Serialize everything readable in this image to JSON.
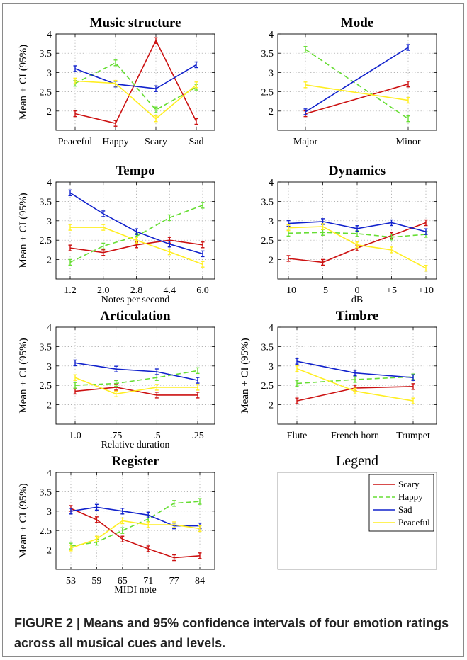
{
  "figure": {
    "caption_lead": "FIGURE 2 | Means and 95% confidence intervals of four emotion ratings across all musical cues and levels."
  },
  "legend": {
    "title": "Legend",
    "entries": [
      {
        "name": "Scary",
        "color": "#cc1111",
        "dashed": false
      },
      {
        "name": "Happy",
        "color": "#66dd33",
        "dashed": true
      },
      {
        "name": "Sad",
        "color": "#1122cc",
        "dashed": false
      },
      {
        "name": "Peaceful",
        "color": "#ffee22",
        "dashed": false
      }
    ]
  },
  "chart_data": [
    {
      "type": "line",
      "title": "Music structure",
      "ylabel": "Mean + CI (95%)",
      "xlabel": "",
      "categories": [
        "Peaceful",
        "Happy",
        "Scary",
        "Sad"
      ],
      "ylim": [
        1.5,
        4
      ],
      "yticks": [
        2,
        2.5,
        3,
        3.5,
        4
      ],
      "grid": true,
      "series": [
        {
          "name": "Scary",
          "values": [
            1.93,
            1.68,
            3.83,
            1.73
          ]
        },
        {
          "name": "Happy",
          "values": [
            2.72,
            3.25,
            2.03,
            2.62
          ]
        },
        {
          "name": "Sad",
          "values": [
            3.1,
            2.7,
            2.58,
            3.2
          ]
        },
        {
          "name": "Peaceful",
          "values": [
            2.78,
            2.72,
            1.8,
            2.68
          ]
        }
      ]
    },
    {
      "type": "line",
      "title": "Mode",
      "ylabel": "",
      "xlabel": "",
      "categories": [
        "Major",
        "Minor"
      ],
      "ylim": [
        1.5,
        4
      ],
      "yticks": [
        2,
        2.5,
        3,
        3.5,
        4
      ],
      "grid": true,
      "series": [
        {
          "name": "Scary",
          "values": [
            1.93,
            2.7
          ]
        },
        {
          "name": "Happy",
          "values": [
            3.6,
            1.8
          ]
        },
        {
          "name": "Sad",
          "values": [
            1.98,
            3.65
          ]
        },
        {
          "name": "Peaceful",
          "values": [
            2.68,
            2.28
          ]
        }
      ]
    },
    {
      "type": "line",
      "title": "Tempo",
      "ylabel": "Mean + CI (95%)",
      "xlabel": "Notes per second",
      "categories": [
        "1.2",
        "2.0",
        "2.8",
        "4.4",
        "6.0"
      ],
      "ylim": [
        1.5,
        4
      ],
      "yticks": [
        2,
        2.5,
        3,
        3.5,
        4
      ],
      "grid": true,
      "series": [
        {
          "name": "Scary",
          "values": [
            2.3,
            2.18,
            2.38,
            2.5,
            2.38
          ]
        },
        {
          "name": "Happy",
          "values": [
            1.93,
            2.35,
            2.6,
            3.08,
            3.4
          ]
        },
        {
          "name": "Sad",
          "values": [
            3.72,
            3.18,
            2.72,
            2.4,
            2.15
          ]
        },
        {
          "name": "Peaceful",
          "values": [
            2.83,
            2.83,
            2.5,
            2.2,
            1.88
          ]
        }
      ]
    },
    {
      "type": "line",
      "title": "Dynamics",
      "ylabel": "",
      "xlabel": "dB",
      "categories": [
        "−10",
        "−5",
        "0",
        "+5",
        "+10"
      ],
      "ylim": [
        1.5,
        4
      ],
      "yticks": [
        2,
        2.5,
        3,
        3.5,
        4
      ],
      "grid": true,
      "series": [
        {
          "name": "Scary",
          "values": [
            2.03,
            1.93,
            2.3,
            2.62,
            2.95
          ]
        },
        {
          "name": "Happy",
          "values": [
            2.68,
            2.7,
            2.67,
            2.58,
            2.65
          ]
        },
        {
          "name": "Sad",
          "values": [
            2.93,
            2.98,
            2.8,
            2.95,
            2.72
          ]
        },
        {
          "name": "Peaceful",
          "values": [
            2.82,
            2.85,
            2.38,
            2.25,
            1.78
          ]
        }
      ]
    },
    {
      "type": "line",
      "title": "Articulation",
      "ylabel": "Mean + CI (95%)",
      "xlabel": "Relative duration",
      "categories": [
        "1.0",
        ".75",
        ".5",
        ".25"
      ],
      "ylim": [
        1.5,
        4
      ],
      "yticks": [
        2,
        2.5,
        3,
        3.5,
        4
      ],
      "grid": true,
      "series": [
        {
          "name": "Scary",
          "values": [
            2.35,
            2.45,
            2.25,
            2.25
          ]
        },
        {
          "name": "Happy",
          "values": [
            2.5,
            2.55,
            2.7,
            2.88
          ]
        },
        {
          "name": "Sad",
          "values": [
            3.08,
            2.92,
            2.85,
            2.63
          ]
        },
        {
          "name": "Peaceful",
          "values": [
            2.7,
            2.28,
            2.45,
            2.45
          ]
        }
      ]
    },
    {
      "type": "line",
      "title": "Timbre",
      "ylabel": "Mean + CI (95%)",
      "xlabel": "",
      "categories": [
        "Flute",
        "French horn",
        "Trumpet"
      ],
      "ylim": [
        1.5,
        4
      ],
      "yticks": [
        2,
        2.5,
        3,
        3.5,
        4
      ],
      "grid": true,
      "series": [
        {
          "name": "Scary",
          "values": [
            2.1,
            2.43,
            2.47
          ]
        },
        {
          "name": "Happy",
          "values": [
            2.55,
            2.65,
            2.72
          ]
        },
        {
          "name": "Sad",
          "values": [
            3.12,
            2.82,
            2.7
          ]
        },
        {
          "name": "Peaceful",
          "values": [
            2.93,
            2.35,
            2.1
          ]
        }
      ]
    },
    {
      "type": "line",
      "title": "Register",
      "ylabel": "Mean + CI (95%)",
      "xlabel": "MIDI note",
      "categories": [
        "53",
        "59",
        "65",
        "71",
        "77",
        "84"
      ],
      "ylim": [
        1.5,
        4
      ],
      "yticks": [
        2,
        2.5,
        3,
        3.5,
        4
      ],
      "grid": true,
      "series": [
        {
          "name": "Scary",
          "values": [
            3.07,
            2.78,
            2.28,
            2.03,
            1.8,
            1.85
          ]
        },
        {
          "name": "Happy",
          "values": [
            2.1,
            2.2,
            2.5,
            2.8,
            3.2,
            3.25
          ]
        },
        {
          "name": "Sad",
          "values": [
            3.0,
            3.1,
            3.0,
            2.9,
            2.62,
            2.62
          ]
        },
        {
          "name": "Peaceful",
          "values": [
            2.05,
            2.28,
            2.75,
            2.65,
            2.65,
            2.55
          ]
        }
      ]
    }
  ]
}
